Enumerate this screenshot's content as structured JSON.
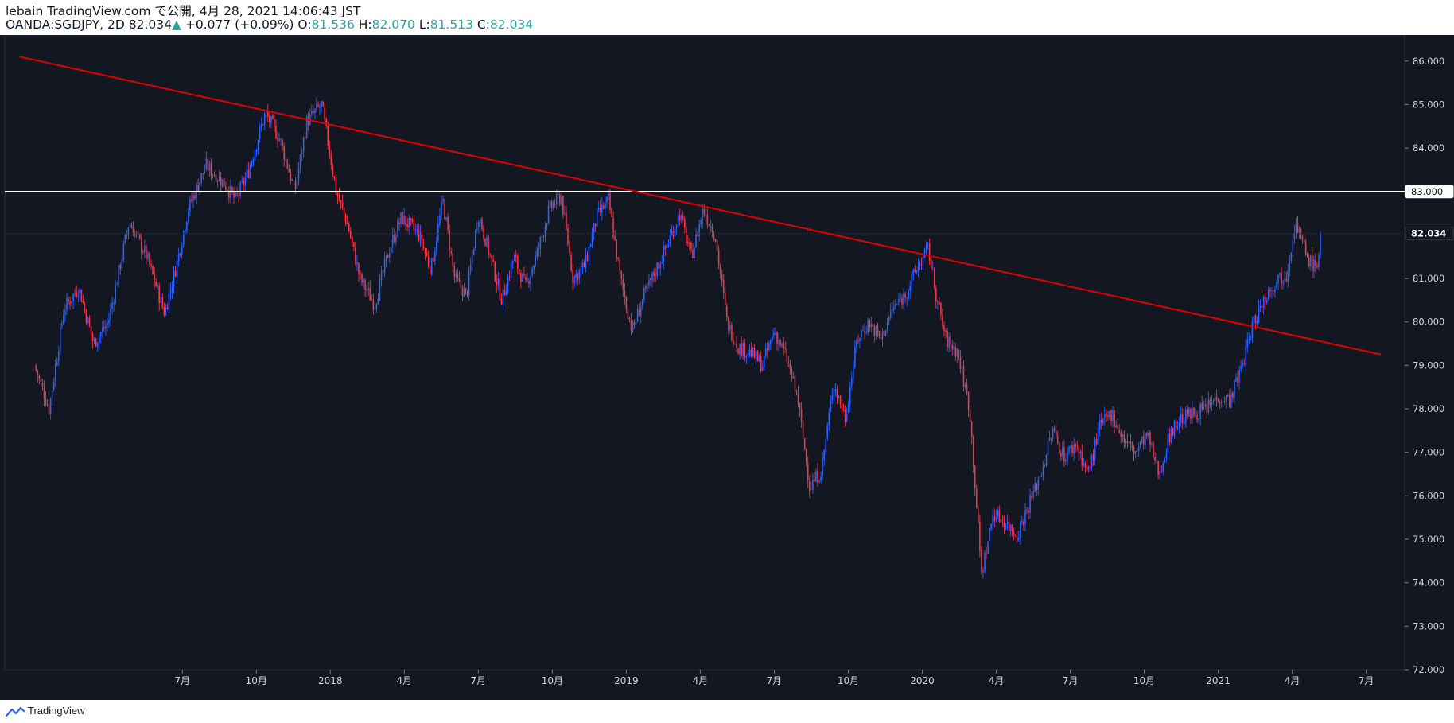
{
  "header": {
    "publisher": "lebain TradingView.com で公開, 4月 28, 2021 14:06:43 JST",
    "symbol": "OANDA:SGDJPY, 2D",
    "last": "82.034",
    "change": "+0.077 (+0.09%)",
    "o_label": "O:",
    "o_value": "81.536",
    "h_label": "H:",
    "h_value": "82.070",
    "l_label": "L:",
    "l_value": "81.513",
    "c_label": "C:",
    "c_value": "82.034"
  },
  "footer": {
    "brand": "TradingView"
  },
  "colors": {
    "background": "#131722",
    "up": "#2962ff",
    "down": "#f23645",
    "trendline": "#e00000",
    "hline": "#ffffff",
    "axis_text": "#d1d4dc",
    "header_bg": "#ffffff",
    "header_up": "#26a69a"
  },
  "chart_data": {
    "type": "candlestick",
    "title": "OANDA:SGDJPY, 2D",
    "ylim": [
      72,
      86.6
    ],
    "y_ticks": [
      "86.000",
      "85.000",
      "84.000",
      "83.000",
      "82.000",
      "81.000",
      "80.000",
      "79.000",
      "78.000",
      "77.000",
      "76.000",
      "75.000",
      "74.000",
      "73.000",
      "72.000"
    ],
    "x_ticks": [
      {
        "t": 0.5,
        "label": "7月"
      },
      {
        "t": 0.75,
        "label": "10月"
      },
      {
        "t": 1.0,
        "label": "2018"
      },
      {
        "t": 1.25,
        "label": "4月"
      },
      {
        "t": 1.5,
        "label": "7月"
      },
      {
        "t": 1.75,
        "label": "10月"
      },
      {
        "t": 2.0,
        "label": "2019"
      },
      {
        "t": 2.25,
        "label": "4月"
      },
      {
        "t": 2.5,
        "label": "7月"
      },
      {
        "t": 2.75,
        "label": "10月"
      },
      {
        "t": 3.0,
        "label": "2020"
      },
      {
        "t": 3.25,
        "label": "4月"
      },
      {
        "t": 3.5,
        "label": "7月"
      },
      {
        "t": 3.75,
        "label": "10月"
      },
      {
        "t": 4.0,
        "label": "2021"
      },
      {
        "t": 4.25,
        "label": "4月"
      },
      {
        "t": 4.5,
        "label": "7月"
      }
    ],
    "path": [
      [
        0.0,
        79.0
      ],
      [
        0.05,
        78.0
      ],
      [
        0.1,
        80.3
      ],
      [
        0.15,
        80.8
      ],
      [
        0.2,
        79.5
      ],
      [
        0.25,
        80.0
      ],
      [
        0.32,
        82.3
      ],
      [
        0.38,
        81.5
      ],
      [
        0.44,
        80.2
      ],
      [
        0.48,
        81.3
      ],
      [
        0.52,
        82.6
      ],
      [
        0.58,
        83.6
      ],
      [
        0.64,
        83.2
      ],
      [
        0.68,
        82.8
      ],
      [
        0.72,
        83.4
      ],
      [
        0.78,
        84.8
      ],
      [
        0.83,
        84.2
      ],
      [
        0.88,
        83.0
      ],
      [
        0.92,
        84.6
      ],
      [
        0.97,
        85.0
      ],
      [
        1.02,
        83.0
      ],
      [
        1.06,
        82.2
      ],
      [
        1.1,
        81.0
      ],
      [
        1.15,
        80.4
      ],
      [
        1.2,
        81.7
      ],
      [
        1.24,
        82.4
      ],
      [
        1.3,
        82.0
      ],
      [
        1.34,
        81.2
      ],
      [
        1.38,
        82.8
      ],
      [
        1.42,
        81.0
      ],
      [
        1.46,
        80.6
      ],
      [
        1.5,
        82.5
      ],
      [
        1.54,
        81.5
      ],
      [
        1.58,
        80.5
      ],
      [
        1.62,
        81.5
      ],
      [
        1.66,
        80.8
      ],
      [
        1.7,
        81.6
      ],
      [
        1.74,
        82.6
      ],
      [
        1.78,
        82.9
      ],
      [
        1.82,
        81.0
      ],
      [
        1.86,
        81.3
      ],
      [
        1.9,
        82.4
      ],
      [
        1.94,
        82.8
      ],
      [
        1.98,
        81.0
      ],
      [
        2.02,
        79.8
      ],
      [
        2.06,
        80.6
      ],
      [
        2.1,
        81.2
      ],
      [
        2.14,
        81.8
      ],
      [
        2.18,
        82.5
      ],
      [
        2.22,
        81.5
      ],
      [
        2.26,
        82.6
      ],
      [
        2.3,
        82.0
      ],
      [
        2.34,
        80.0
      ],
      [
        2.38,
        79.4
      ],
      [
        2.42,
        79.3
      ],
      [
        2.46,
        79.0
      ],
      [
        2.5,
        79.8
      ],
      [
        2.54,
        79.2
      ],
      [
        2.58,
        78.2
      ],
      [
        2.62,
        76.2
      ],
      [
        2.66,
        76.6
      ],
      [
        2.7,
        78.6
      ],
      [
        2.74,
        77.8
      ],
      [
        2.78,
        79.6
      ],
      [
        2.82,
        80.0
      ],
      [
        2.86,
        79.6
      ],
      [
        2.9,
        80.3
      ],
      [
        2.94,
        80.6
      ],
      [
        2.98,
        81.2
      ],
      [
        3.02,
        81.7
      ],
      [
        3.05,
        80.5
      ],
      [
        3.08,
        79.6
      ],
      [
        3.12,
        79.3
      ],
      [
        3.16,
        78.0
      ],
      [
        3.2,
        74.2
      ],
      [
        3.24,
        75.6
      ],
      [
        3.28,
        75.4
      ],
      [
        3.32,
        75.1
      ],
      [
        3.36,
        75.8
      ],
      [
        3.4,
        76.5
      ],
      [
        3.44,
        77.5
      ],
      [
        3.48,
        76.9
      ],
      [
        3.52,
        77.2
      ],
      [
        3.56,
        76.5
      ],
      [
        3.6,
        77.6
      ],
      [
        3.64,
        77.9
      ],
      [
        3.68,
        77.3
      ],
      [
        3.72,
        77.0
      ],
      [
        3.76,
        77.4
      ],
      [
        3.8,
        76.5
      ],
      [
        3.84,
        77.5
      ],
      [
        3.88,
        77.8
      ],
      [
        3.92,
        77.9
      ],
      [
        3.96,
        78.0
      ],
      [
        4.0,
        78.3
      ],
      [
        4.04,
        78.2
      ],
      [
        4.08,
        79.0
      ],
      [
        4.12,
        80.0
      ],
      [
        4.16,
        80.6
      ],
      [
        4.2,
        81.0
      ],
      [
        4.23,
        81.1
      ],
      [
        4.26,
        82.3
      ],
      [
        4.3,
        81.5
      ],
      [
        4.33,
        81.2
      ],
      [
        4.35,
        82.034
      ]
    ],
    "annotations": {
      "horizontal_line": 83.0,
      "trendline": [
        [
          -0.05,
          86.1
        ],
        [
          4.55,
          79.25
        ]
      ],
      "last_price": 82.034
    },
    "price_labels": [
      {
        "value": 83.0,
        "text": "83.000"
      },
      {
        "value": 82.034,
        "text": "82.034"
      }
    ]
  }
}
